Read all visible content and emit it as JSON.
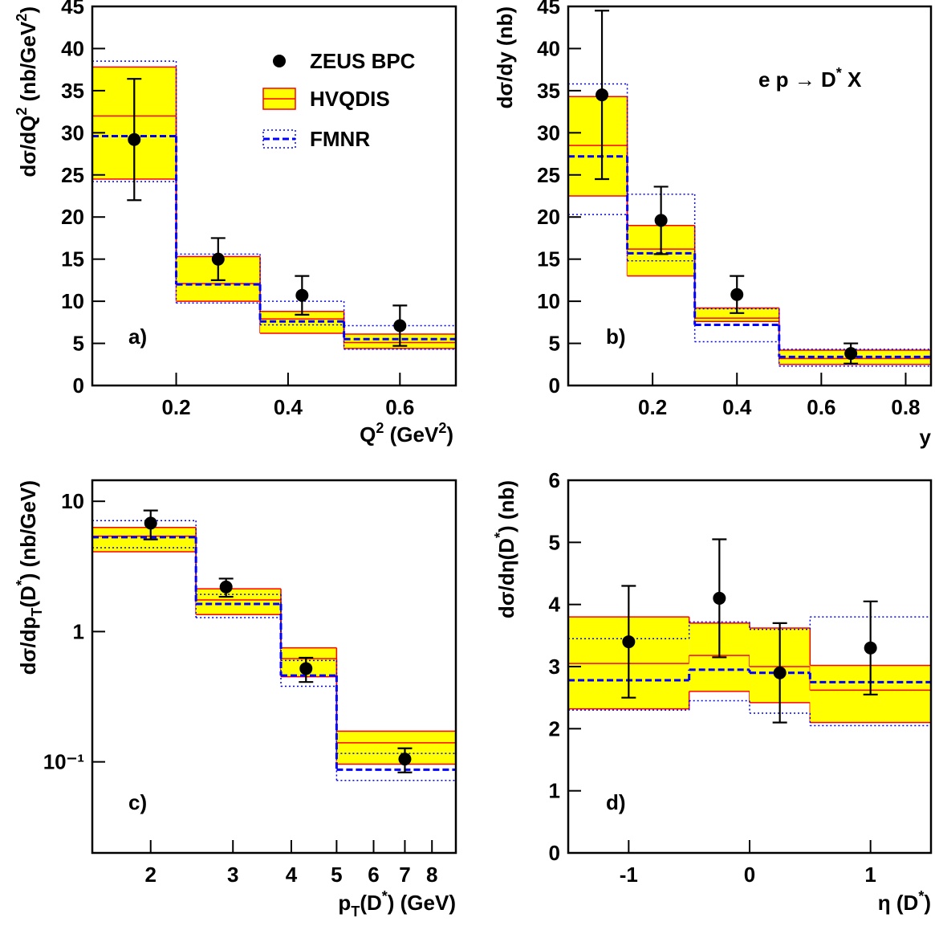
{
  "chart_data": [
    {
      "type": "binned",
      "panel_label": "a)",
      "x_label": [
        "Q",
        "2",
        "   (GeV",
        "2",
        ")"
      ],
      "y_label": [
        "dσ/dQ",
        "2",
        "   (nb/GeV",
        "2",
        ")"
      ],
      "xlim": [
        0.05,
        0.7
      ],
      "xticks": [
        0.2,
        0.4,
        0.6
      ],
      "ylim": [
        0,
        45
      ],
      "yticks": [
        0,
        5,
        10,
        15,
        20,
        25,
        30,
        35,
        40,
        45
      ],
      "log_x": false,
      "log_y": false,
      "legend": "upper right",
      "bins": [
        0.05,
        0.2,
        0.35,
        0.5,
        0.7
      ],
      "points": {
        "name": "ZEUS BPC",
        "color": "#000000",
        "x": [
          0.125,
          0.275,
          0.425,
          0.6
        ],
        "values": [
          29.2,
          15.0,
          10.7,
          7.1
        ],
        "errors": [
          7.2,
          2.5,
          2.3,
          2.4
        ]
      },
      "bands": [
        {
          "name": "HVQDIS",
          "color": "#ff0000",
          "fill": "#ffff00",
          "low": [
            24.5,
            10.0,
            6.2,
            4.4
          ],
          "high": [
            37.8,
            15.3,
            8.8,
            6.1
          ],
          "values": [
            32.0,
            12.1,
            7.9,
            5.1
          ]
        },
        {
          "name": "FMNR",
          "color": "#0000ff",
          "low": [
            24.2,
            9.8,
            7.2,
            4.3
          ],
          "high": [
            38.5,
            15.6,
            10.0,
            7.1
          ],
          "values": [
            29.6,
            12.0,
            7.6,
            5.5
          ]
        }
      ]
    },
    {
      "type": "binned",
      "panel_label": "b)",
      "x_label": [
        "y"
      ],
      "y_label": [
        "dσ/dy  (nb)"
      ],
      "annotation": [
        "e p → D",
        "*",
        " X"
      ],
      "xlim": [
        0,
        0.86
      ],
      "xticks": [
        0.2,
        0.4,
        0.6,
        0.8
      ],
      "ylim": [
        0,
        45
      ],
      "yticks": [
        0,
        5,
        10,
        15,
        20,
        25,
        30,
        35,
        40,
        45
      ],
      "log_x": false,
      "log_y": false,
      "bins": [
        0,
        0.14,
        0.3,
        0.5,
        0.86
      ],
      "points": {
        "color": "#000000",
        "x": [
          0.08,
          0.22,
          0.4,
          0.67
        ],
        "values": [
          34.5,
          19.6,
          10.8,
          3.8
        ],
        "errors": [
          10.0,
          4.0,
          2.2,
          1.2
        ]
      },
      "bands": [
        {
          "color": "#ff0000",
          "fill": "#ffff00",
          "low": [
            22.5,
            13.0,
            7.6,
            2.5
          ],
          "high": [
            34.3,
            19.0,
            9.2,
            4.2
          ],
          "values": [
            28.5,
            16.2,
            8.0,
            3.2
          ]
        },
        {
          "color": "#0000ff",
          "low": [
            20.3,
            14.8,
            5.2,
            2.3
          ],
          "high": [
            35.8,
            22.7,
            9.1,
            4.3
          ],
          "values": [
            27.2,
            15.7,
            7.2,
            3.4
          ]
        }
      ]
    },
    {
      "type": "binned",
      "panel_label": "c)",
      "x_label": [
        "p",
        "T",
        "(D",
        "*",
        ")   (GeV)"
      ],
      "y_label": [
        "dσ/dp",
        "T",
        "(D",
        "*",
        ")  (nb/GeV)"
      ],
      "xlim": [
        1.5,
        9
      ],
      "xticks": [
        2,
        3,
        4,
        5,
        6,
        7,
        8
      ],
      "ylim": [
        0.02,
        14.5
      ],
      "yticks": [
        {
          "value": 0.1,
          "label": "10⁻¹"
        },
        1,
        10
      ],
      "log_x": true,
      "log_y": true,
      "bins": [
        1.5,
        2.5,
        3.8,
        5,
        9
      ],
      "points": {
        "color": "#000000",
        "x": [
          2,
          2.9,
          4.3,
          7
        ],
        "values": [
          6.8,
          2.2,
          0.52,
          0.105
        ],
        "errors": [
          1.7,
          0.35,
          0.11,
          0.022
        ]
      },
      "bands": [
        {
          "color": "#ff0000",
          "fill": "#ffff00",
          "low": [
            4.1,
            1.35,
            0.45,
            0.096
          ],
          "high": [
            6.3,
            2.13,
            0.75,
            0.172
          ],
          "values": [
            5.4,
            1.75,
            0.62,
            0.14
          ]
        },
        {
          "color": "#0000ff",
          "low": [
            4.4,
            1.28,
            0.38,
            0.072
          ],
          "high": [
            7.1,
            1.93,
            0.6,
            0.116
          ],
          "values": [
            5.3,
            1.63,
            0.46,
            0.087
          ]
        }
      ]
    },
    {
      "type": "binned",
      "panel_label": "d)",
      "x_label": [
        "η (D",
        "*",
        ")"
      ],
      "y_label": [
        "dσ/dη(D",
        "*",
        ")  (nb)"
      ],
      "xlim": [
        -1.5,
        1.5
      ],
      "xticks": [
        -1,
        0,
        1
      ],
      "ylim": [
        0,
        6
      ],
      "yticks": [
        0,
        1,
        2,
        3,
        4,
        5,
        6
      ],
      "log_x": false,
      "log_y": false,
      "bins": [
        -1.5,
        -0.5,
        0,
        0.5,
        1.5
      ],
      "points": {
        "color": "#000000",
        "x": [
          -1,
          -0.25,
          0.25,
          1
        ],
        "values": [
          3.4,
          4.1,
          2.9,
          3.3
        ],
        "errors": [
          0.9,
          0.95,
          0.8,
          0.75
        ]
      },
      "bands": [
        {
          "color": "#ff0000",
          "fill": "#ffff00",
          "low": [
            2.32,
            2.6,
            2.42,
            2.1
          ],
          "high": [
            3.8,
            3.7,
            3.62,
            3.02
          ],
          "values": [
            3.05,
            3.18,
            3.0,
            2.62
          ]
        },
        {
          "color": "#0000ff",
          "low": [
            2.3,
            2.45,
            2.25,
            2.05
          ],
          "high": [
            3.45,
            3.72,
            3.6,
            3.8
          ],
          "values": [
            2.78,
            2.95,
            2.9,
            2.75
          ]
        }
      ]
    }
  ]
}
